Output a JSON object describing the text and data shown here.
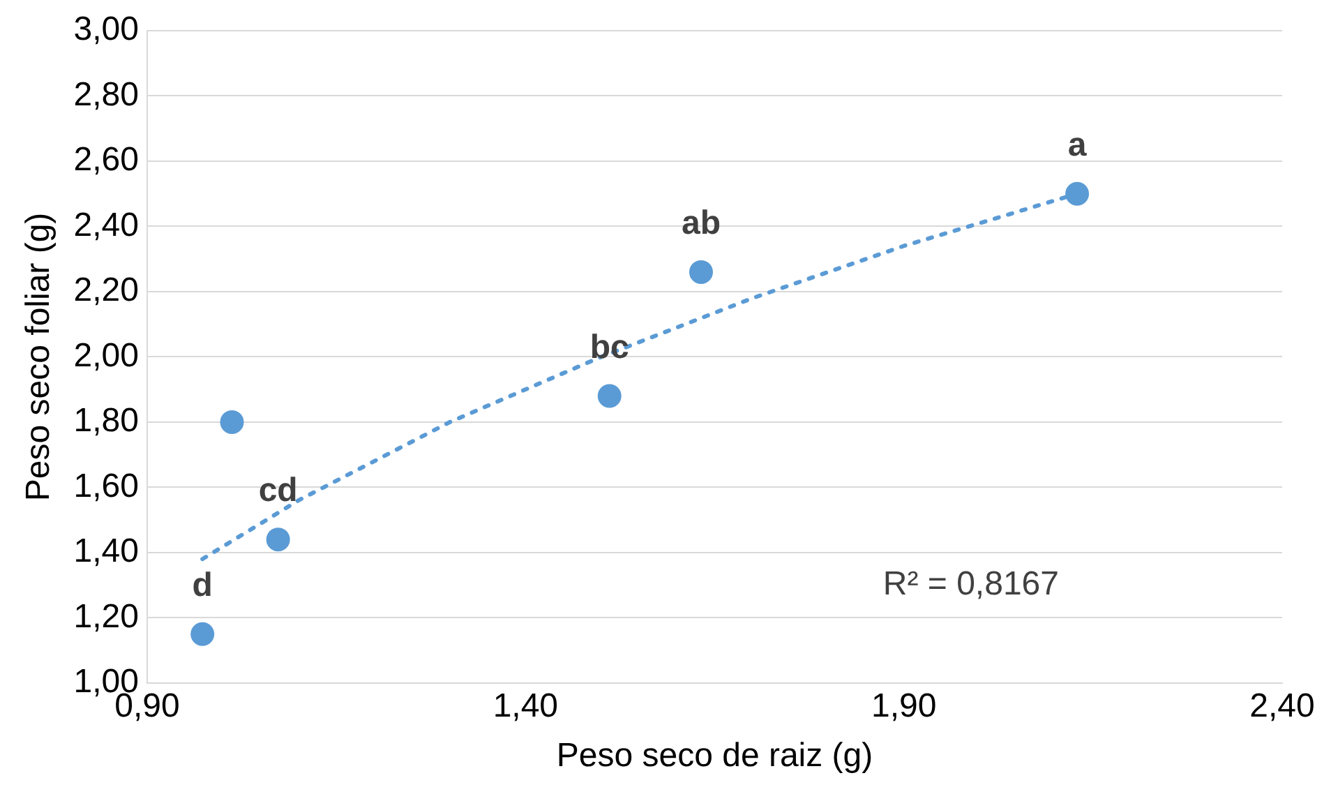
{
  "chart_data": {
    "type": "scatter",
    "xlabel": "Peso seco de raiz (g)",
    "ylabel": "Peso seco foliar (g)",
    "series": [
      {
        "type": "scatter",
        "color": "#5b9bd5",
        "x": [
          0.973,
          1.012,
          1.073,
          1.511,
          1.632,
          2.129
        ],
        "values": [
          1.15,
          1.8,
          1.44,
          1.88,
          2.26,
          2.5
        ],
        "marker": "circle"
      },
      {
        "type": "line",
        "color": "#5b9bd5",
        "line_style": "dotted",
        "marker": "none",
        "x": [
          0.973,
          1.1,
          1.3,
          1.5,
          1.7,
          1.9,
          2.129
        ],
        "values": [
          1.38,
          1.56,
          1.8,
          2.0,
          2.18,
          2.34,
          2.5
        ]
      }
    ],
    "xlim": [
      0.9,
      2.4
    ],
    "xticks": [
      {
        "value": 0.9,
        "label": "0,90"
      },
      {
        "value": 1.4,
        "label": "1,40"
      },
      {
        "value": 1.9,
        "label": "1,90"
      },
      {
        "value": 2.4,
        "label": "2,40"
      }
    ],
    "ylim": [
      1,
      3
    ],
    "yticks": [
      {
        "value": 1,
        "label": "1,00"
      },
      {
        "value": 1.2,
        "label": "1,20"
      },
      {
        "value": 1.4,
        "label": "1,40"
      },
      {
        "value": 1.6,
        "label": "1,60"
      },
      {
        "value": 1.8,
        "label": "1,80"
      },
      {
        "value": 2,
        "label": "2,00"
      },
      {
        "value": 2.2,
        "label": "2,20"
      },
      {
        "value": 2.4,
        "label": "2,40"
      },
      {
        "value": 2.6,
        "label": "2,60"
      },
      {
        "value": 2.8,
        "label": "2,80"
      },
      {
        "value": 3,
        "label": "3,00"
      }
    ],
    "grid": "y",
    "legend": false,
    "annotations": [
      {
        "text": "a",
        "x": 2.129,
        "y": 2.5
      },
      {
        "text": "ab",
        "x": 1.632,
        "y": 2.26
      },
      {
        "text": "bc",
        "x": 1.511,
        "y": 1.88
      },
      {
        "text": "cd",
        "x": 1.073,
        "y": 1.44
      },
      {
        "text": "d",
        "x": 0.973,
        "y": 1.15
      },
      "R² = 0,8167"
    ]
  }
}
